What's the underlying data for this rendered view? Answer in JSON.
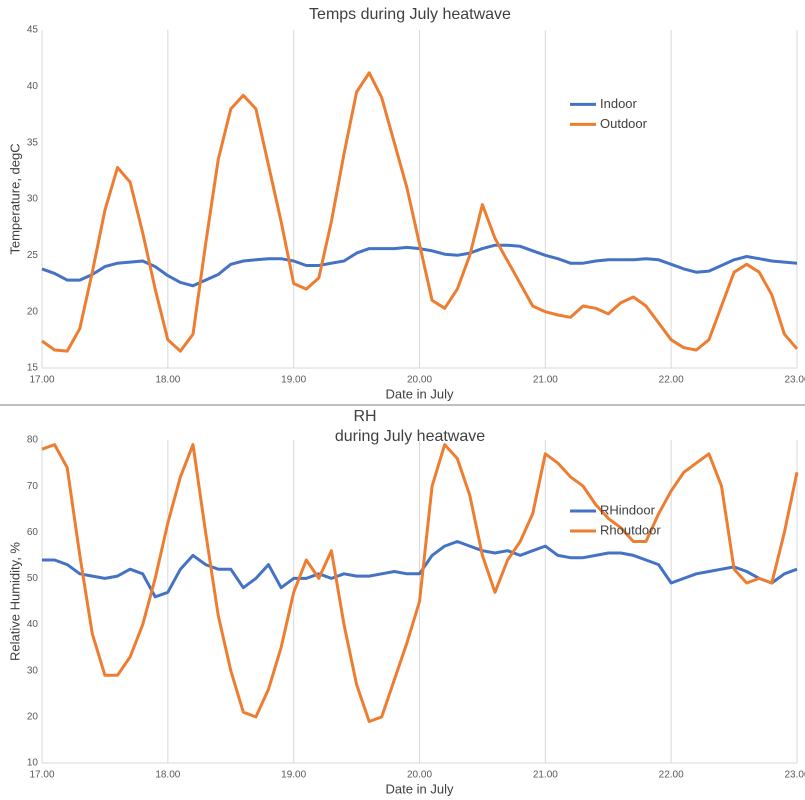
{
  "chart_data": [
    {
      "type": "line",
      "title": [
        "Temps during July heatwave"
      ],
      "x_label": "Date in July",
      "y_label": "Temperature, degC",
      "x": [
        17,
        17.1,
        17.2,
        17.3,
        17.4,
        17.5,
        17.6,
        17.7,
        17.8,
        17.9,
        18,
        18.1,
        18.2,
        18.3,
        18.4,
        18.5,
        18.6,
        18.7,
        18.8,
        18.9,
        19,
        19.1,
        19.2,
        19.3,
        19.4,
        19.5,
        19.6,
        19.7,
        19.8,
        19.9,
        20,
        20.1,
        20.2,
        20.3,
        20.4,
        20.5,
        20.6,
        20.7,
        20.8,
        20.9,
        21,
        21.1,
        21.2,
        21.3,
        21.4,
        21.5,
        21.6,
        21.7,
        21.8,
        21.9,
        22,
        22.1,
        22.2,
        22.3,
        22.4,
        22.5,
        22.6,
        22.7,
        22.8,
        22.9,
        23
      ],
      "series": [
        {
          "name": "Indoor",
          "color": "#4472c4",
          "values": [
            23.8,
            23.4,
            22.8,
            22.8,
            23.3,
            24.0,
            24.3,
            24.4,
            24.5,
            24.0,
            23.2,
            22.6,
            22.3,
            22.8,
            23.3,
            24.2,
            24.5,
            24.6,
            24.7,
            24.7,
            24.5,
            24.1,
            24.1,
            24.3,
            24.5,
            25.2,
            25.6,
            25.6,
            25.6,
            25.7,
            25.6,
            25.4,
            25.1,
            25.0,
            25.2,
            25.6,
            25.9,
            25.9,
            25.8,
            25.4,
            25.0,
            24.7,
            24.3,
            24.3,
            24.5,
            24.6,
            24.6,
            24.6,
            24.7,
            24.6,
            24.2,
            23.8,
            23.5,
            23.6,
            24.1,
            24.6,
            24.9,
            24.7,
            24.5,
            24.4,
            24.3
          ]
        },
        {
          "name": "Outdoor",
          "color": "#ed7d31",
          "values": [
            17.4,
            16.6,
            16.5,
            18.5,
            23.5,
            29,
            32.8,
            31.5,
            27,
            22,
            17.5,
            16.5,
            18,
            26,
            33.5,
            38,
            39.2,
            38,
            33,
            28,
            22.5,
            22,
            23,
            28,
            34,
            39.5,
            41.2,
            39,
            35,
            31,
            26,
            21,
            20.3,
            22,
            25,
            29.5,
            26.5,
            24.5,
            22.5,
            20.5,
            20.0,
            19.7,
            19.5,
            20.5,
            20.3,
            19.8,
            20.8,
            21.3,
            20.5,
            19,
            17.5,
            16.8,
            16.6,
            17.5,
            20.5,
            23.5,
            24.2,
            23.5,
            21.5,
            18,
            16.7
          ]
        }
      ],
      "xlim": [
        17,
        23
      ],
      "ylim": [
        15,
        45
      ],
      "xticks": [
        {
          "value": 17,
          "label": "17.00"
        },
        {
          "value": 18,
          "label": "18.00"
        },
        {
          "value": 19,
          "label": "19.00"
        },
        {
          "value": 20,
          "label": "20.00"
        },
        {
          "value": 21,
          "label": "21.00"
        },
        {
          "value": 22,
          "label": "22.00"
        },
        {
          "value": 23,
          "label": "23.00"
        }
      ],
      "yticks": [
        15,
        20,
        25,
        30,
        35,
        40,
        45
      ],
      "grid": "x",
      "legend": "right"
    },
    {
      "type": "line",
      "title": [
        "RH",
        "during July heatwave"
      ],
      "x_label": "Date in July",
      "y_label": "Relative Humidity, %",
      "x": [
        17,
        17.1,
        17.2,
        17.3,
        17.4,
        17.5,
        17.6,
        17.7,
        17.8,
        17.9,
        18,
        18.1,
        18.2,
        18.3,
        18.4,
        18.5,
        18.6,
        18.7,
        18.8,
        18.9,
        19,
        19.1,
        19.2,
        19.3,
        19.4,
        19.5,
        19.6,
        19.7,
        19.8,
        19.9,
        20,
        20.1,
        20.2,
        20.3,
        20.4,
        20.5,
        20.6,
        20.7,
        20.8,
        20.9,
        21,
        21.1,
        21.2,
        21.3,
        21.4,
        21.5,
        21.6,
        21.7,
        21.8,
        21.9,
        22,
        22.1,
        22.2,
        22.3,
        22.4,
        22.5,
        22.6,
        22.7,
        22.8,
        22.9,
        23
      ],
      "series": [
        {
          "name": "RHindoor",
          "color": "#4472c4",
          "values": [
            54,
            54,
            53,
            51,
            50.5,
            50,
            50.5,
            52,
            51,
            46,
            47,
            52,
            55,
            53,
            52,
            52,
            48,
            50,
            53,
            48,
            50,
            50,
            51,
            50,
            51,
            50.5,
            50.5,
            51,
            51.5,
            51,
            51,
            55,
            57,
            58,
            57,
            56,
            55.5,
            56,
            55,
            56,
            57,
            55,
            54.5,
            54.5,
            55,
            55.5,
            55.5,
            55,
            54,
            53,
            49,
            50,
            51,
            51.5,
            52,
            52.5,
            51.5,
            50,
            49,
            51,
            52
          ]
        },
        {
          "name": "Rhoutdoor",
          "color": "#ed7d31",
          "values": [
            78,
            79,
            74,
            55,
            38,
            29,
            29,
            33,
            40,
            50,
            62,
            72,
            79,
            60,
            42,
            30,
            21,
            20,
            26,
            35,
            47,
            54,
            50,
            56,
            40,
            27,
            19,
            20,
            28,
            36,
            45,
            70,
            79,
            76,
            68,
            55,
            47,
            54,
            58,
            64,
            77,
            75,
            72,
            70,
            66,
            63,
            61,
            58,
            58,
            64,
            69,
            73,
            75,
            77,
            70,
            52,
            49,
            50,
            49,
            60,
            73
          ]
        }
      ],
      "xlim": [
        17,
        23
      ],
      "ylim": [
        10,
        80
      ],
      "xticks": [
        {
          "value": 17,
          "label": "17.00"
        },
        {
          "value": 18,
          "label": "18.00"
        },
        {
          "value": 19,
          "label": "19.00"
        },
        {
          "value": 20,
          "label": "20.00"
        },
        {
          "value": 21,
          "label": "21.00"
        },
        {
          "value": 22,
          "label": "22.00"
        },
        {
          "value": 23,
          "label": "23.00"
        }
      ],
      "yticks": [
        10,
        20,
        30,
        40,
        50,
        60,
        70,
        80
      ],
      "grid": "x",
      "legend": "right"
    }
  ]
}
